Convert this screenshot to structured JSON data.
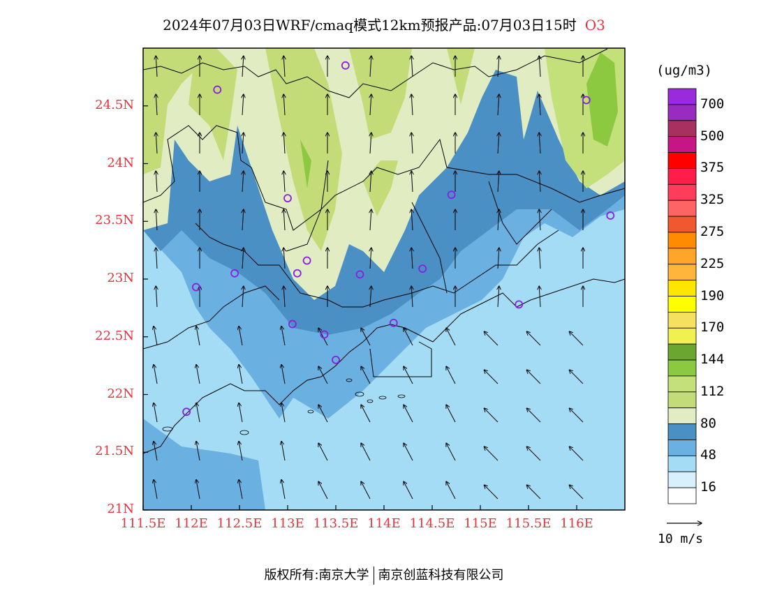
{
  "title": "2024年07月03日WRF/cmaq模式12km预报产品:07月03日15时",
  "species": "O3",
  "map": {
    "lat_labels": [
      "24.5N",
      "24N",
      "23.5N",
      "23N",
      "22.5N",
      "22N",
      "21.5N",
      "21N"
    ],
    "lon_labels": [
      "111.5E",
      "112E",
      "112.5E",
      "113E",
      "113.5E",
      "114E",
      "114.5E",
      "115E",
      "115.5E",
      "116E"
    ]
  },
  "colorbar": {
    "unit": "(ug/m3)",
    "labels": [
      "700",
      "500",
      "375",
      "325",
      "275",
      "225",
      "190",
      "170",
      "144",
      "112",
      "80",
      "48",
      "16"
    ],
    "colors": [
      "#9a2bdc",
      "#9a2bc0",
      "#a83060",
      "#c71585",
      "#ff0000",
      "#ff1e4a",
      "#ff3c5a",
      "#ff6464",
      "#f0582d",
      "#ff8c00",
      "#ffa52a",
      "#ffb43c",
      "#ffe600",
      "#ffff00",
      "#f5e060",
      "#f0f050",
      "#6aa630",
      "#8cc840",
      "#c3e07a",
      "#c3dc78",
      "#e1ecc3",
      "#4a90c4",
      "#6ab0e0",
      "#a5dcf5",
      "#d7f0fc",
      "#ffffff"
    ]
  },
  "vector_legend": {
    "label": "10 m/s"
  },
  "stations": [
    {
      "lon": 112.27,
      "lat": 24.64
    },
    {
      "lon": 113.6,
      "lat": 24.85
    },
    {
      "lon": 116.1,
      "lat": 24.55
    },
    {
      "lon": 113.0,
      "lat": 23.7
    },
    {
      "lon": 114.7,
      "lat": 23.73
    },
    {
      "lon": 116.35,
      "lat": 23.55
    },
    {
      "lon": 113.2,
      "lat": 23.16
    },
    {
      "lon": 113.1,
      "lat": 23.05
    },
    {
      "lon": 112.45,
      "lat": 23.05
    },
    {
      "lon": 113.75,
      "lat": 23.04
    },
    {
      "lon": 114.4,
      "lat": 23.09
    },
    {
      "lon": 112.05,
      "lat": 22.93
    },
    {
      "lon": 115.4,
      "lat": 22.78
    },
    {
      "lon": 113.05,
      "lat": 22.61
    },
    {
      "lon": 114.1,
      "lat": 22.62
    },
    {
      "lon": 113.38,
      "lat": 22.52
    },
    {
      "lon": 113.5,
      "lat": 22.3
    },
    {
      "lon": 111.95,
      "lat": 21.85
    }
  ],
  "copyright": {
    "prefix": "版权所有:",
    "org1": "南京大学",
    "org2": "南京创蓝科技有限公司"
  }
}
